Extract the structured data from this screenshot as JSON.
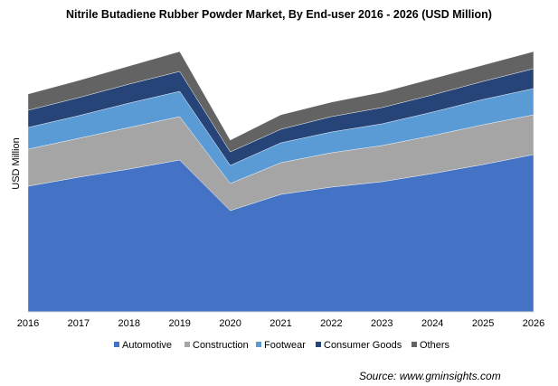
{
  "chart_data": {
    "type": "area",
    "stacked": true,
    "title": "Nitrile Butadiene Rubber Powder Market, By End-user 2016 - 2026 (USD Million)",
    "xlabel": "",
    "ylabel": "USD Million",
    "categories": [
      "2016",
      "2017",
      "2018",
      "2019",
      "2020",
      "2021",
      "2022",
      "2023",
      "2024",
      "2025",
      "2026"
    ],
    "ylim": [
      0,
      290
    ],
    "grid": false,
    "legend_position": "bottom",
    "series": [
      {
        "name": "Automotive",
        "color": "#4472C4",
        "values": [
          139,
          149,
          158,
          168,
          112,
          130,
          138,
          144,
          153,
          163,
          174
        ]
      },
      {
        "name": "Construction",
        "color": "#A5A5A5",
        "values": [
          41,
          43,
          46,
          48,
          30,
          35,
          38,
          40,
          42,
          44,
          44
        ]
      },
      {
        "name": "Footwear",
        "color": "#5B9BD5",
        "values": [
          24,
          25,
          27,
          28,
          20,
          22,
          23,
          24,
          26,
          28,
          29
        ]
      },
      {
        "name": "Consumer Goods",
        "color": "#264478",
        "values": [
          19,
          20,
          21,
          22,
          15,
          15,
          17,
          18,
          19,
          20,
          22
        ]
      },
      {
        "name": "Others",
        "color": "#636363",
        "values": [
          18,
          19,
          20,
          22,
          13,
          16,
          16,
          17,
          18,
          18,
          19
        ]
      }
    ],
    "source": "Source: www.gminsights.com"
  }
}
